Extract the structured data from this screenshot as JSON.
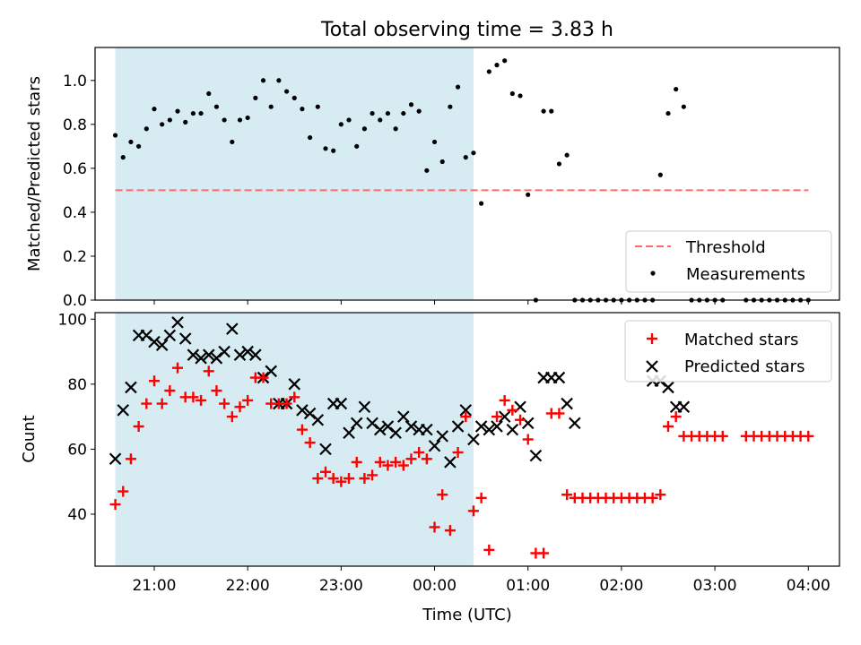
{
  "title": "Total observing time = 3.83 h",
  "colors": {
    "shade": "#add8e6",
    "threshold": "#ff6b6b",
    "measure": "#000000",
    "matched": "#ff0000",
    "predicted": "#000000"
  },
  "chart_data": [
    {
      "type": "scatter",
      "ylabel": "Matched/Predicted stars",
      "ylim": [
        0,
        1.15
      ],
      "xlim": [
        "20:22",
        "04:20"
      ],
      "shaded_range": [
        "20:35",
        "00:25"
      ],
      "yticks": [
        "0.0",
        "0.2",
        "0.4",
        "0.6",
        "0.8",
        "1.0"
      ],
      "threshold": {
        "name": "Threshold",
        "value": 0.5,
        "x_range": [
          "20:35",
          "04:00"
        ]
      },
      "legend": {
        "position": "lower-right",
        "entries": [
          "Threshold",
          "Measurements"
        ]
      },
      "series": [
        {
          "name": "Measurements",
          "points": [
            [
              "20:35",
              0.75
            ],
            [
              "20:40",
              0.65
            ],
            [
              "20:45",
              0.72
            ],
            [
              "20:50",
              0.7
            ],
            [
              "20:55",
              0.78
            ],
            [
              "21:00",
              0.87
            ],
            [
              "21:05",
              0.8
            ],
            [
              "21:10",
              0.82
            ],
            [
              "21:15",
              0.86
            ],
            [
              "21:20",
              0.81
            ],
            [
              "21:25",
              0.85
            ],
            [
              "21:30",
              0.85
            ],
            [
              "21:35",
              0.94
            ],
            [
              "21:40",
              0.88
            ],
            [
              "21:45",
              0.82
            ],
            [
              "21:50",
              0.72
            ],
            [
              "21:55",
              0.82
            ],
            [
              "22:00",
              0.83
            ],
            [
              "22:05",
              0.92
            ],
            [
              "22:10",
              1.0
            ],
            [
              "22:15",
              0.88
            ],
            [
              "22:20",
              1.0
            ],
            [
              "22:25",
              0.95
            ],
            [
              "22:30",
              0.92
            ],
            [
              "22:35",
              0.87
            ],
            [
              "22:40",
              0.74
            ],
            [
              "22:45",
              0.88
            ],
            [
              "22:50",
              0.69
            ],
            [
              "22:55",
              0.68
            ],
            [
              "23:00",
              0.8
            ],
            [
              "23:05",
              0.82
            ],
            [
              "23:10",
              0.7
            ],
            [
              "23:15",
              0.78
            ],
            [
              "23:20",
              0.85
            ],
            [
              "23:25",
              0.82
            ],
            [
              "23:30",
              0.85
            ],
            [
              "23:35",
              0.78
            ],
            [
              "23:40",
              0.85
            ],
            [
              "23:45",
              0.89
            ],
            [
              "23:50",
              0.86
            ],
            [
              "23:55",
              0.59
            ],
            [
              "00:00",
              0.72
            ],
            [
              "00:05",
              0.63
            ],
            [
              "00:10",
              0.88
            ],
            [
              "00:15",
              0.97
            ],
            [
              "00:20",
              0.65
            ],
            [
              "00:25",
              0.67
            ],
            [
              "00:30",
              0.44
            ],
            [
              "00:35",
              1.04
            ],
            [
              "00:40",
              1.07
            ],
            [
              "00:45",
              1.09
            ],
            [
              "00:50",
              0.94
            ],
            [
              "00:55",
              0.93
            ],
            [
              "01:00",
              0.48
            ],
            [
              "01:05",
              0.0
            ],
            [
              "01:10",
              0.86
            ],
            [
              "01:15",
              0.86
            ],
            [
              "01:20",
              0.62
            ],
            [
              "01:25",
              0.66
            ],
            [
              "01:30",
              0.0
            ],
            [
              "01:35",
              0.0
            ],
            [
              "01:40",
              0.0
            ],
            [
              "01:45",
              0.0
            ],
            [
              "01:50",
              0.0
            ],
            [
              "01:55",
              0.0
            ],
            [
              "02:00",
              0.0
            ],
            [
              "02:05",
              0.0
            ],
            [
              "02:10",
              0.0
            ],
            [
              "02:15",
              0.0
            ],
            [
              "02:20",
              0.0
            ],
            [
              "02:25",
              0.57
            ],
            [
              "02:30",
              0.85
            ],
            [
              "02:35",
              0.96
            ],
            [
              "02:40",
              0.88
            ],
            [
              "02:45",
              0.0
            ],
            [
              "02:50",
              0.0
            ],
            [
              "02:55",
              0.0
            ],
            [
              "03:00",
              0.0
            ],
            [
              "03:05",
              0.0
            ],
            [
              "03:20",
              0.0
            ],
            [
              "03:25",
              0.0
            ],
            [
              "03:30",
              0.0
            ],
            [
              "03:35",
              0.0
            ],
            [
              "03:40",
              0.0
            ],
            [
              "03:45",
              0.0
            ],
            [
              "03:50",
              0.0
            ],
            [
              "03:55",
              0.0
            ],
            [
              "04:00",
              0.0
            ]
          ]
        }
      ]
    },
    {
      "type": "scatter",
      "xlabel": "Time (UTC)",
      "ylabel": "Count",
      "ylim": [
        24,
        102
      ],
      "xlim": [
        "20:22",
        "04:20"
      ],
      "shaded_range": [
        "20:35",
        "00:25"
      ],
      "xticks": [
        "21:00",
        "22:00",
        "23:00",
        "00:00",
        "01:00",
        "02:00",
        "03:00",
        "04:00"
      ],
      "yticks": [
        "40",
        "60",
        "80",
        "100"
      ],
      "legend": {
        "position": "top-right",
        "entries": [
          "Matched stars",
          "Predicted stars"
        ]
      },
      "series": [
        {
          "name": "Matched stars",
          "marker": "+",
          "points": [
            [
              "20:35",
              43
            ],
            [
              "20:40",
              47
            ],
            [
              "20:45",
              57
            ],
            [
              "20:50",
              67
            ],
            [
              "20:55",
              74
            ],
            [
              "21:00",
              81
            ],
            [
              "21:05",
              74
            ],
            [
              "21:10",
              78
            ],
            [
              "21:15",
              85
            ],
            [
              "21:20",
              76
            ],
            [
              "21:25",
              76
            ],
            [
              "21:30",
              75
            ],
            [
              "21:35",
              84
            ],
            [
              "21:40",
              78
            ],
            [
              "21:45",
              74
            ],
            [
              "21:50",
              70
            ],
            [
              "21:55",
              73
            ],
            [
              "22:00",
              75
            ],
            [
              "22:05",
              82
            ],
            [
              "22:10",
              82
            ],
            [
              "22:15",
              74
            ],
            [
              "22:20",
              74
            ],
            [
              "22:25",
              74
            ],
            [
              "22:30",
              76
            ],
            [
              "22:35",
              66
            ],
            [
              "22:40",
              62
            ],
            [
              "22:45",
              51
            ],
            [
              "22:50",
              53
            ],
            [
              "22:55",
              51
            ],
            [
              "23:00",
              50
            ],
            [
              "23:05",
              51
            ],
            [
              "23:10",
              56
            ],
            [
              "23:15",
              51
            ],
            [
              "23:20",
              52
            ],
            [
              "23:25",
              56
            ],
            [
              "23:30",
              55
            ],
            [
              "23:35",
              56
            ],
            [
              "23:40",
              55
            ],
            [
              "23:45",
              57
            ],
            [
              "23:50",
              59
            ],
            [
              "23:55",
              57
            ],
            [
              "00:00",
              36
            ],
            [
              "00:05",
              46
            ],
            [
              "00:10",
              35
            ],
            [
              "00:15",
              59
            ],
            [
              "00:20",
              70
            ],
            [
              "00:25",
              41
            ],
            [
              "00:30",
              45
            ],
            [
              "00:35",
              29
            ],
            [
              "00:40",
              70
            ],
            [
              "00:45",
              75
            ],
            [
              "00:50",
              72
            ],
            [
              "00:55",
              69
            ],
            [
              "01:00",
              63
            ],
            [
              "01:05",
              28
            ],
            [
              "01:10",
              28
            ],
            [
              "01:15",
              71
            ],
            [
              "01:20",
              71
            ],
            [
              "01:25",
              46
            ],
            [
              "01:30",
              45
            ],
            [
              "01:35",
              45
            ],
            [
              "01:40",
              45
            ],
            [
              "01:45",
              45
            ],
            [
              "01:50",
              45
            ],
            [
              "01:55",
              45
            ],
            [
              "02:00",
              45
            ],
            [
              "02:05",
              45
            ],
            [
              "02:10",
              45
            ],
            [
              "02:15",
              45
            ],
            [
              "02:20",
              45
            ],
            [
              "02:25",
              46
            ],
            [
              "02:30",
              67
            ],
            [
              "02:35",
              70
            ],
            [
              "02:40",
              64
            ],
            [
              "02:45",
              64
            ],
            [
              "02:50",
              64
            ],
            [
              "02:55",
              64
            ],
            [
              "03:00",
              64
            ],
            [
              "03:05",
              64
            ],
            [
              "03:20",
              64
            ],
            [
              "03:25",
              64
            ],
            [
              "03:30",
              64
            ],
            [
              "03:35",
              64
            ],
            [
              "03:40",
              64
            ],
            [
              "03:45",
              64
            ],
            [
              "03:50",
              64
            ],
            [
              "03:55",
              64
            ],
            [
              "04:00",
              64
            ]
          ]
        },
        {
          "name": "Predicted stars",
          "marker": "x",
          "points": [
            [
              "20:35",
              57
            ],
            [
              "20:40",
              72
            ],
            [
              "20:45",
              79
            ],
            [
              "20:50",
              95
            ],
            [
              "20:55",
              95
            ],
            [
              "21:00",
              93
            ],
            [
              "21:05",
              92
            ],
            [
              "21:10",
              95
            ],
            [
              "21:15",
              99
            ],
            [
              "21:20",
              94
            ],
            [
              "21:25",
              89
            ],
            [
              "21:30",
              88
            ],
            [
              "21:35",
              89
            ],
            [
              "21:40",
              88
            ],
            [
              "21:45",
              90
            ],
            [
              "21:50",
              97
            ],
            [
              "21:55",
              89
            ],
            [
              "22:00",
              90
            ],
            [
              "22:05",
              89
            ],
            [
              "22:10",
              82
            ],
            [
              "22:15",
              84
            ],
            [
              "22:20",
              74
            ],
            [
              "22:25",
              74
            ],
            [
              "22:30",
              80
            ],
            [
              "22:35",
              72
            ],
            [
              "22:40",
              71
            ],
            [
              "22:45",
              69
            ],
            [
              "22:50",
              60
            ],
            [
              "22:55",
              74
            ],
            [
              "23:00",
              74
            ],
            [
              "23:05",
              65
            ],
            [
              "23:10",
              68
            ],
            [
              "23:15",
              73
            ],
            [
              "23:20",
              68
            ],
            [
              "23:25",
              66
            ],
            [
              "23:30",
              67
            ],
            [
              "23:35",
              65
            ],
            [
              "23:40",
              70
            ],
            [
              "23:45",
              67
            ],
            [
              "23:50",
              66
            ],
            [
              "23:55",
              66
            ],
            [
              "00:00",
              61
            ],
            [
              "00:05",
              64
            ],
            [
              "00:10",
              56
            ],
            [
              "00:15",
              67
            ],
            [
              "00:20",
              72
            ],
            [
              "00:25",
              63
            ],
            [
              "00:30",
              67
            ],
            [
              "00:35",
              66
            ],
            [
              "00:40",
              67
            ],
            [
              "00:45",
              70
            ],
            [
              "00:50",
              66
            ],
            [
              "00:55",
              73
            ],
            [
              "01:00",
              68
            ],
            [
              "01:05",
              58
            ],
            [
              "01:10",
              82
            ],
            [
              "01:15",
              82
            ],
            [
              "01:20",
              82
            ],
            [
              "01:25",
              74
            ],
            [
              "01:30",
              68
            ],
            [
              "02:20",
              81
            ],
            [
              "02:25",
              81
            ],
            [
              "02:30",
              79
            ],
            [
              "02:35",
              73
            ],
            [
              "02:40",
              73
            ]
          ]
        }
      ]
    }
  ]
}
